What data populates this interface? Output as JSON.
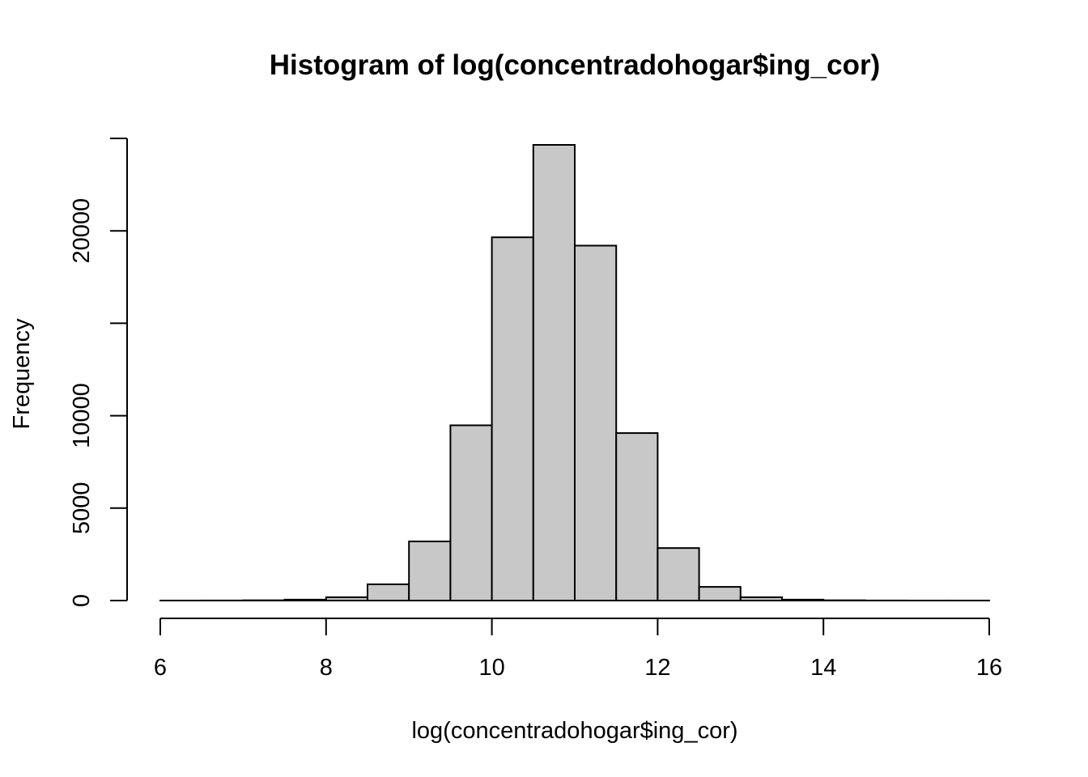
{
  "chart_data": {
    "type": "bar",
    "title": "Histogram of log(concentradohogar$ing_cor)",
    "xlabel": "log(concentradohogar$ing_cor)",
    "ylabel": "Frequency",
    "bin_edges": [
      6,
      6.5,
      7,
      7.5,
      8,
      8.5,
      9,
      9.5,
      10,
      10.5,
      11,
      11.5,
      12,
      12.5,
      13,
      13.5,
      14,
      14.5,
      15,
      15.5,
      16
    ],
    "values": [
      2,
      5,
      15,
      50,
      180,
      880,
      3200,
      9480,
      19650,
      24650,
      19200,
      9060,
      2840,
      740,
      180,
      50,
      15,
      5,
      2,
      2
    ],
    "xlim": [
      6,
      16
    ],
    "ylim": [
      0,
      25000
    ],
    "xticks": [
      "6",
      "8",
      "10",
      "12",
      "14",
      "16"
    ],
    "yticks": [
      "0",
      "5000",
      "10000",
      "",
      "20000",
      ""
    ],
    "ytick_values": [
      0,
      5000,
      10000,
      15000,
      20000,
      25000
    ],
    "bar_fill": "#c8c8c8",
    "bar_stroke": "#000000",
    "grid": false
  }
}
